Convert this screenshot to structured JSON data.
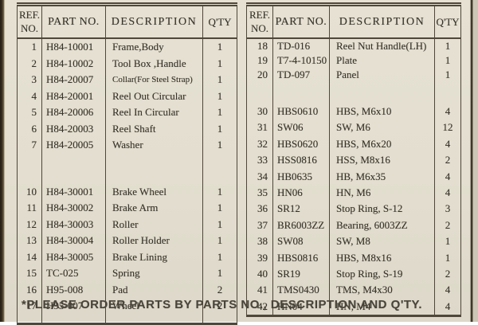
{
  "page": {
    "background": "#e2ddcf",
    "ink_color": "#39342a",
    "line_color": "#4e473a"
  },
  "left_table": {
    "headers": [
      "REF.\nNO.",
      "PART NO.",
      "DESCRIPTION",
      "Q'TY"
    ],
    "groups": [
      [
        {
          "ref": "1",
          "part": "H84-10001",
          "desc": "Frame,Body",
          "qty": "1"
        },
        {
          "ref": "2",
          "part": "H84-10002",
          "desc": "Tool Box ,Handle",
          "qty": "1"
        },
        {
          "ref": "3",
          "part": "H84-20007",
          "desc": "Collar(For Steel Strap)",
          "qty": "1"
        },
        {
          "ref": "4",
          "part": "H84-20001",
          "desc": "Reel Out Circular",
          "qty": "1"
        },
        {
          "ref": "5",
          "part": "H84-20006",
          "desc": "Reel In Circular",
          "qty": "1"
        },
        {
          "ref": "6",
          "part": "H84-20003",
          "desc": "Reel Shaft",
          "qty": "1"
        },
        {
          "ref": "7",
          "part": "H84-20005",
          "desc": "Washer",
          "qty": "1"
        }
      ],
      [
        {
          "ref": "10",
          "part": "H84-30001",
          "desc": "Brake Wheel",
          "qty": "1"
        },
        {
          "ref": "11",
          "part": "H84-30002",
          "desc": "Brake Arm",
          "qty": "1"
        },
        {
          "ref": "12",
          "part": "H84-30003",
          "desc": "Roller",
          "qty": "1"
        },
        {
          "ref": "13",
          "part": "H84-30004",
          "desc": "Roller Holder",
          "qty": "1"
        },
        {
          "ref": "14",
          "part": "H84-30005",
          "desc": "Brake Lining",
          "qty": "1"
        },
        {
          "ref": "15",
          "part": "TC-025",
          "desc": "Spring",
          "qty": "1"
        },
        {
          "ref": "16",
          "part": "H95-008",
          "desc": "Pad",
          "qty": "2"
        },
        {
          "ref": "17",
          "part": "H95-007",
          "desc": "Wheel",
          "qty": "2"
        }
      ]
    ]
  },
  "right_table": {
    "headers": [
      "REF.\nNO.",
      "PART NO.",
      "DESCRIPTION",
      "Q'TY"
    ],
    "groups": [
      [
        {
          "ref": "18",
          "part": "TD-016",
          "desc": "Reel Nut Handle(LH)",
          "qty": "1"
        },
        {
          "ref": "19",
          "part": "T7-4-10150",
          "desc": "Plate",
          "qty": "1"
        },
        {
          "ref": "20",
          "part": "TD-097",
          "desc": "Panel",
          "qty": "1"
        }
      ],
      [
        {
          "ref": "30",
          "part": "HBS0610",
          "desc": "HBS, M6x10",
          "qty": "4"
        },
        {
          "ref": "31",
          "part": "SW06",
          "desc": "SW, M6",
          "qty": "12"
        },
        {
          "ref": "32",
          "part": "HBS0620",
          "desc": "HBS, M6x20",
          "qty": "4"
        },
        {
          "ref": "33",
          "part": "HSS0816",
          "desc": "HSS, M8x16",
          "qty": "2"
        },
        {
          "ref": "34",
          "part": "HB0635",
          "desc": "HB, M6x35",
          "qty": "4"
        },
        {
          "ref": "35",
          "part": "HN06",
          "desc": "HN, M6",
          "qty": "4"
        },
        {
          "ref": "36",
          "part": "SR12",
          "desc": "Stop Ring, S-12",
          "qty": "3"
        },
        {
          "ref": "37",
          "part": "BR6003ZZ",
          "desc": "Bearing, 6003ZZ",
          "qty": "2"
        },
        {
          "ref": "38",
          "part": "SW08",
          "desc": "SW, M8",
          "qty": "1"
        },
        {
          "ref": "39",
          "part": "HBS0816",
          "desc": "HBS, M8x16",
          "qty": "1"
        },
        {
          "ref": "40",
          "part": "SR19",
          "desc": "Stop Ring, S-19",
          "qty": "2"
        },
        {
          "ref": "41",
          "part": "TMS0430",
          "desc": "TMS, M4x30",
          "qty": "4"
        },
        {
          "ref": "42",
          "part": "HN04",
          "desc": "HN, M4",
          "qty": "4"
        }
      ]
    ]
  },
  "footer": {
    "note": "*PLEASE ORDER PARTS BY PARTS NO., DESCRIPTION AND Q'TY."
  }
}
